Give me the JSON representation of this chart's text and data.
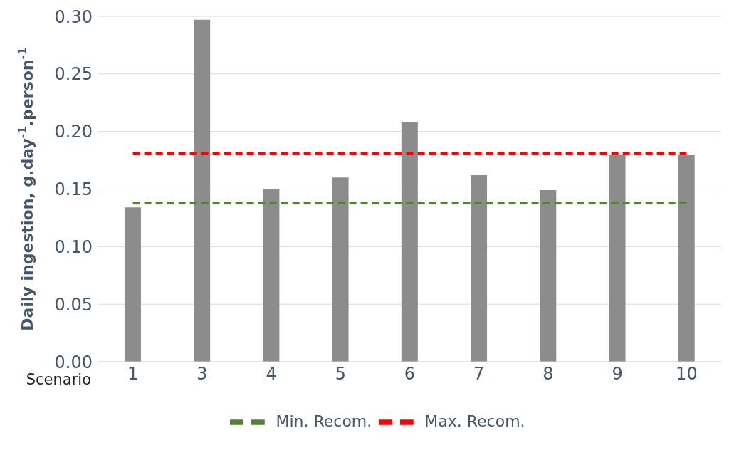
{
  "chart_data": {
    "type": "bar",
    "categories": [
      "1",
      "3",
      "4",
      "5",
      "6",
      "7",
      "8",
      "9",
      "10"
    ],
    "xlabel": "Scenario",
    "ylabel": "Daily ingestion, g.day$^{-1}$.person$^{-1}$",
    "series": [
      {
        "color": "#8c8c8c",
        "values": [
          0.134,
          0.297,
          0.15,
          0.16,
          0.208,
          0.162,
          0.149,
          0.18,
          0.18
        ]
      },
      {
        "type": "line",
        "name": "Min. Recom.",
        "color": "#548235",
        "line_style": "dashed",
        "marker": "none",
        "values": [
          0.138,
          0.138,
          0.138,
          0.138,
          0.138,
          0.138,
          0.138,
          0.138,
          0.138
        ]
      },
      {
        "type": "line",
        "name": "Max. Recom.",
        "color": "#ff0000",
        "line_style": "dashed",
        "marker": "none",
        "values": [
          0.181,
          0.181,
          0.181,
          0.181,
          0.181,
          0.181,
          0.181,
          0.181,
          0.181
        ]
      }
    ],
    "ylim": [
      0,
      0.3
    ],
    "yticks": [
      {
        "value": 0,
        "label": "0.00"
      },
      {
        "value": 0.05,
        "label": "0.05"
      },
      {
        "value": 0.1,
        "label": "0.10"
      },
      {
        "value": 0.15,
        "label": "0.15"
      },
      {
        "value": 0.2,
        "label": "0.20"
      },
      {
        "value": 0.25,
        "label": "0.25"
      },
      {
        "value": 0.3,
        "label": "0.30"
      }
    ],
    "grid": "y",
    "legend": "bottom"
  }
}
